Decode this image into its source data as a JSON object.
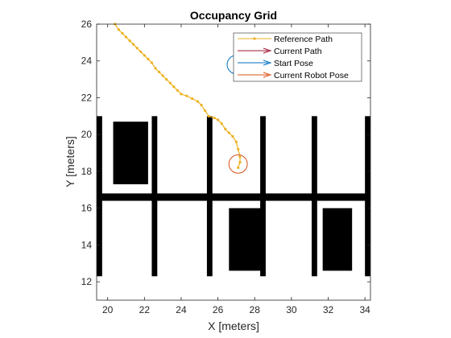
{
  "colors": {
    "reference_path": "#EDB120",
    "current_path": "#A2142F",
    "start_pose": "#0072BD",
    "robot_pose": "#D95319",
    "obstacle": "#000000",
    "axes": "#262626"
  },
  "chart_data": {
    "type": "occupancy-map",
    "title": "Occupancy Grid",
    "xlabel": "X [meters]",
    "ylabel": "Y [meters]",
    "xlim": [
      19.4,
      34.3
    ],
    "ylim": [
      11.0,
      26.0
    ],
    "xticks": [
      20,
      22,
      24,
      26,
      28,
      30,
      32,
      34
    ],
    "yticks": [
      12,
      14,
      16,
      18,
      20,
      22,
      24,
      26
    ],
    "grid": false,
    "legend_position": "top-right",
    "legend": [
      "Reference Path",
      "Current Path",
      "Start Pose",
      "Current Robot Pose"
    ],
    "obstacles": [
      {
        "x1": 19.4,
        "x2": 34.3,
        "y1": 16.4,
        "y2": 16.8
      },
      {
        "x1": 19.4,
        "x2": 19.7,
        "y1": 12.3,
        "y2": 21.0
      },
      {
        "x1": 34.0,
        "x2": 34.3,
        "y1": 12.3,
        "y2": 21.0
      },
      {
        "x1": 22.4,
        "x2": 22.7,
        "y1": 12.3,
        "y2": 21.0
      },
      {
        "x1": 25.4,
        "x2": 25.7,
        "y1": 12.3,
        "y2": 21.0
      },
      {
        "x1": 28.3,
        "x2": 28.6,
        "y1": 12.3,
        "y2": 21.0
      },
      {
        "x1": 31.1,
        "x2": 31.4,
        "y1": 12.3,
        "y2": 21.0
      },
      {
        "x1": 20.3,
        "x2": 22.2,
        "y1": 17.3,
        "y2": 20.7
      },
      {
        "x1": 26.6,
        "x2": 28.5,
        "y1": 12.6,
        "y2": 16.0
      },
      {
        "x1": 31.7,
        "x2": 33.3,
        "y1": 12.6,
        "y2": 16.0
      }
    ],
    "reference_path": [
      [
        20.4,
        26.0
      ],
      [
        20.6,
        25.7
      ],
      [
        20.8,
        25.5
      ],
      [
        21.0,
        25.3
      ],
      [
        21.2,
        25.1
      ],
      [
        21.4,
        24.9
      ],
      [
        21.6,
        24.7
      ],
      [
        21.8,
        24.5
      ],
      [
        22.0,
        24.3
      ],
      [
        22.2,
        24.1
      ],
      [
        22.4,
        23.9
      ],
      [
        22.6,
        23.6
      ],
      [
        22.8,
        23.4
      ],
      [
        23.0,
        23.2
      ],
      [
        23.2,
        23.0
      ],
      [
        23.4,
        22.8
      ],
      [
        23.6,
        22.6
      ],
      [
        23.8,
        22.4
      ],
      [
        24.0,
        22.2
      ],
      [
        24.3,
        22.1
      ],
      [
        24.6,
        21.95
      ],
      [
        24.9,
        21.8
      ],
      [
        25.1,
        21.6
      ],
      [
        25.3,
        21.3
      ],
      [
        25.5,
        21.0
      ],
      [
        25.8,
        20.9
      ],
      [
        26.0,
        20.8
      ],
      [
        26.2,
        20.6
      ],
      [
        26.4,
        20.3
      ],
      [
        26.6,
        20.1
      ],
      [
        26.8,
        19.9
      ],
      [
        27.0,
        19.6
      ],
      [
        27.1,
        19.2
      ],
      [
        27.2,
        18.8
      ],
      [
        27.2,
        18.5
      ],
      [
        27.1,
        18.2
      ]
    ],
    "start_pose": {
      "x": 27.0,
      "y": 23.8
    },
    "robot_pose": {
      "x": 27.1,
      "y": 18.4
    },
    "robot_radius": 0.5
  }
}
